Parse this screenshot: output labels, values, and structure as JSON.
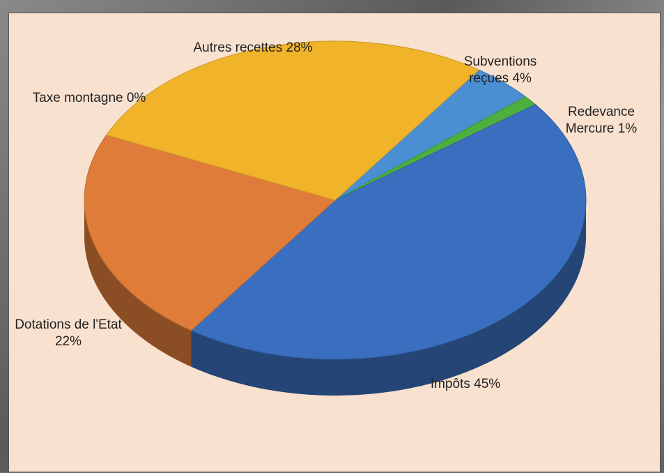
{
  "chart_data": {
    "type": "pie",
    "categories": [
      "Subventions reçues",
      "Redevance Mercure",
      "Impôts",
      "Dotations de l'Etat",
      "Taxe montagne",
      "Autres recettes"
    ],
    "values": [
      4,
      1,
      45,
      22,
      0,
      28
    ],
    "value_labels": [
      "4%",
      "1%",
      "45%",
      "22%",
      "0%",
      "28%"
    ],
    "colors": [
      "#4a8fd2",
      "#4caf3e",
      "#3a6fbf",
      "#e07c3a",
      "#8a8a8a",
      "#f0b32a"
    ]
  }
}
